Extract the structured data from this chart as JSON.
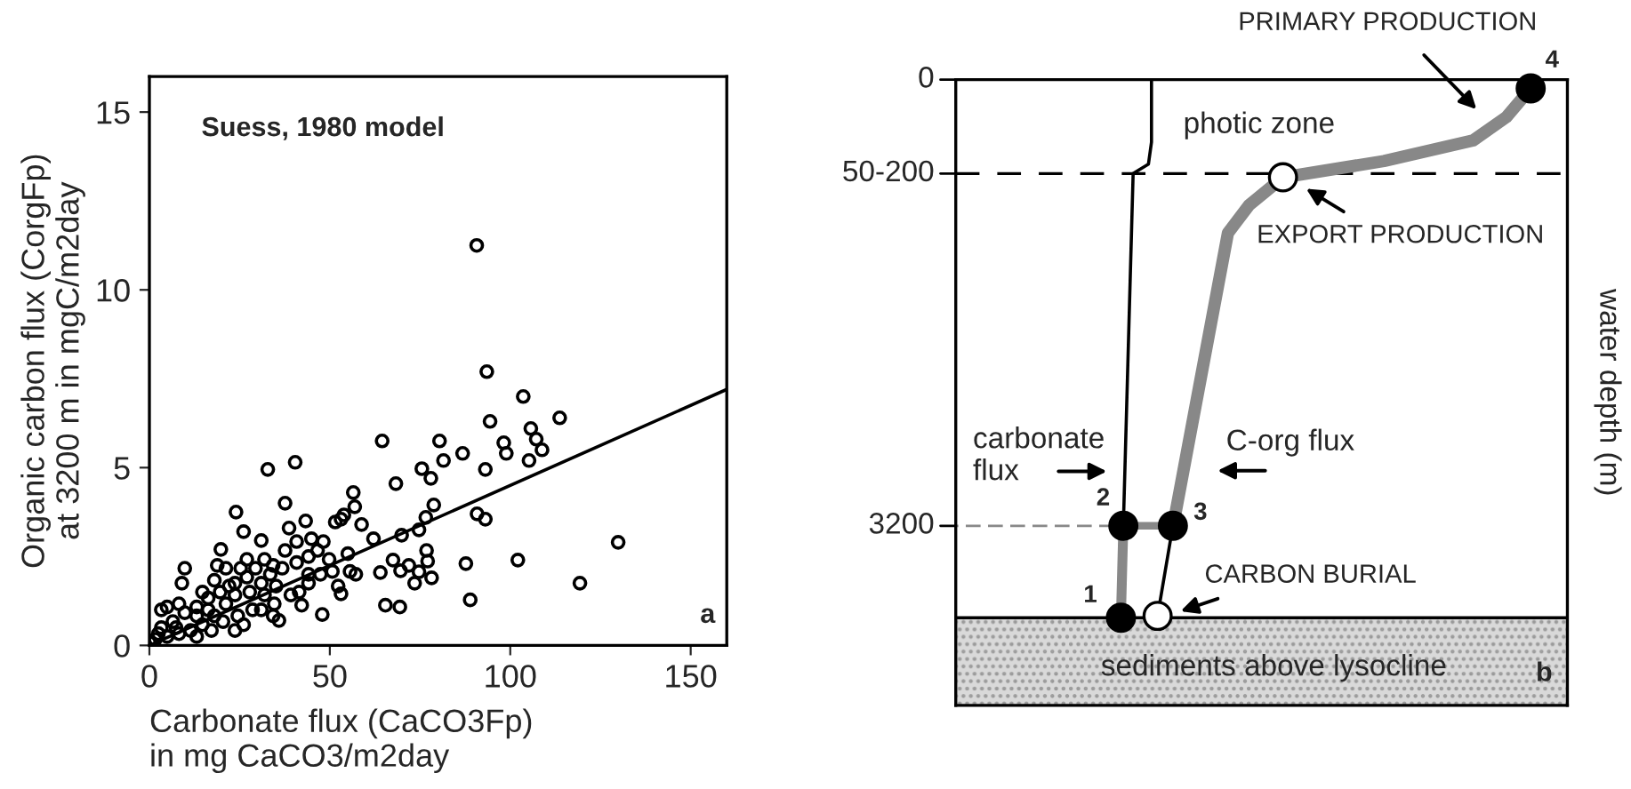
{
  "chart_data": [
    {
      "type": "scatter",
      "xlabel": "Carbonate flux (CaCO3Fp)\nin mg CaCO3/m2day",
      "ylabel": "Organic carbon flux (CorgFp)\nat 3200 m in mgC/m2day",
      "xlim": [
        0,
        160
      ],
      "ylim": [
        0,
        16
      ],
      "xticks": [
        0,
        50,
        100,
        150
      ],
      "yticks": [
        0,
        5,
        10,
        15
      ],
      "legend": false,
      "grid": false,
      "annotations": [
        "Suess, 1980 model",
        "a"
      ],
      "series": [
        {
          "type": "scatter",
          "marker": "circle",
          "color": "#000000",
          "x": [
            90.7,
            93.5,
            94.4,
            103.6,
            113.7,
            105.7,
            107.2,
            108.8,
            105.2,
            98.2,
            98.9,
            86.8,
            81.5,
            80.4,
            75.5,
            78,
            93.1,
            64.5,
            68.3,
            40.4,
            32.8,
            37.6,
            24,
            26.1,
            56.5,
            56.9,
            58.8,
            53.1,
            43.3,
            38.7,
            31,
            19.8,
            62.1,
            69.9,
            74.7,
            78.8,
            76.6,
            90.8,
            93.1,
            129.9,
            102.1,
            87.7,
            77.1,
            74.7,
            78.2,
            73.5,
            67.5,
            64,
            69.6,
            119.3,
            88.9,
            65.4,
            69.4,
            47.9,
            52.3,
            50.7,
            55.6,
            53.1,
            42.2,
            35.9,
            34.6,
            9.8,
            9,
            44.1,
            40.8,
            36.8,
            33.5,
            31,
            27.8,
            23.7,
            21.2,
            18,
            14.7,
            11.4,
            8.2,
            4.9,
            1.6,
            3.3,
            6.5,
            4.9,
            9.8,
            13.1,
            16.3,
            18,
            18.8,
            21.2,
            23.7,
            25.3,
            27,
            29.4,
            31.9,
            34.3,
            37.6,
            40.8,
            44.9,
            48.2,
            46.6,
            49.8,
            47.4,
            44.1,
            41.5,
            39.2,
            31.9,
            28.6,
            24.5,
            20.4,
            17.2,
            13.1,
            3.3,
            8.2,
            14.7,
            19.6,
            22.1,
            27,
            31,
            34.3,
            26.1,
            23.7,
            0,
            2.5,
            51.5,
            53.9,
            55,
            44.1,
            35.1,
            57.2,
            71.9,
            76.8,
            16.3,
            13.1,
            7.4
          ],
          "values": [
            11.25,
            7.7,
            6.3,
            7.0,
            6.4,
            6.1,
            5.8,
            5.5,
            5.2,
            5.7,
            5.4,
            5.4,
            5.2,
            5.75,
            4.97,
            4.7,
            4.95,
            5.75,
            4.55,
            5.15,
            4.95,
            4.0,
            3.75,
            3.2,
            4.3,
            3.9,
            3.4,
            3.55,
            3.5,
            3.3,
            2.95,
            2.7,
            3.0,
            3.1,
            3.25,
            3.95,
            3.6,
            3.7,
            3.55,
            2.9,
            2.4,
            2.3,
            2.37,
            2.07,
            1.9,
            1.75,
            2.4,
            2.05,
            2.1,
            1.75,
            1.28,
            1.13,
            1.08,
            0.87,
            1.67,
            2.08,
            2.08,
            1.45,
            1.13,
            0.7,
            1.17,
            2.17,
            1.75,
            2.5,
            2.33,
            2.17,
            2.0,
            1.75,
            1.5,
            1.42,
            1.17,
            0.83,
            0.58,
            0.42,
            0.33,
            0.25,
            0.17,
            0.5,
            0.67,
            1.08,
            0.92,
            1.08,
            1.33,
            1.83,
            2.25,
            2.17,
            1.75,
            2.17,
            2.42,
            2.17,
            2.42,
            2.25,
            2.67,
            2.92,
            3.0,
            2.92,
            2.67,
            2.42,
            2.0,
            1.75,
            1.5,
            1.42,
            1.42,
            1.0,
            0.83,
            0.67,
            0.42,
            0.25,
            1.0,
            1.17,
            1.5,
            1.5,
            1.67,
            1.92,
            1.0,
            0.83,
            0.58,
            0.42,
            0.08,
            0.33,
            3.47,
            3.67,
            2.58,
            2.0,
            1.67,
            2.0,
            2.25,
            2.67,
            1.0,
            0.83,
            0.5
          ]
        },
        {
          "type": "line",
          "color": "#000000",
          "x": [
            0,
            160
          ],
          "values": [
            0,
            7.2
          ]
        }
      ]
    },
    {
      "type": "other",
      "ylabel": "water depth (m)",
      "annotations": [
        "PRIMARY PRODUCTION",
        "photic zone",
        "EXPORT PRODUCTION",
        "carbonate\nflux",
        "C-org flux",
        "CARBON BURIAL",
        "sediments above lysocline",
        "b",
        "1",
        "2",
        "3",
        "4",
        "0",
        "50-200",
        "3200"
      ]
    }
  ]
}
